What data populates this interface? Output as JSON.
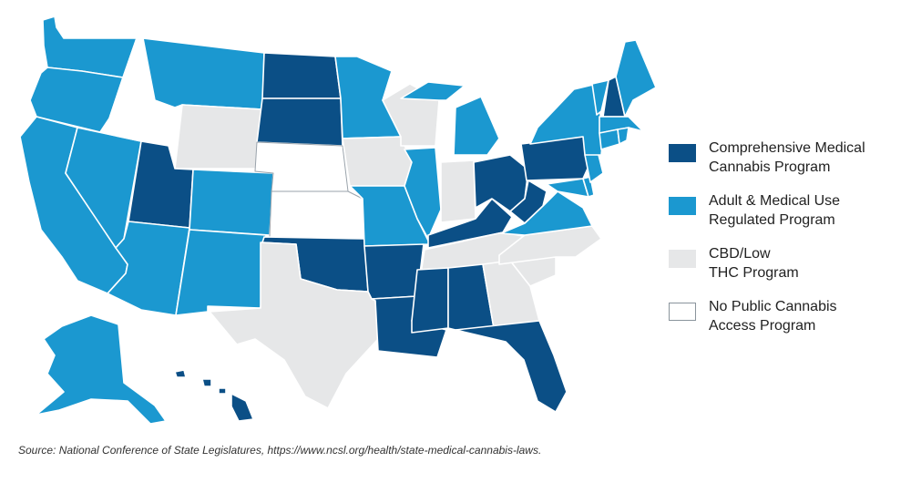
{
  "colors": {
    "comprehensive": "#0b4f86",
    "adult": "#1b98d0",
    "cbd": "#e6e7e8",
    "none": "#ffffff"
  },
  "legend": [
    {
      "category": "comprehensive",
      "line1": "Comprehensive Medical",
      "line2": "Cannabis Program"
    },
    {
      "category": "adult",
      "line1": "Adult & Medical Use",
      "line2": "Regulated Program"
    },
    {
      "category": "cbd",
      "line1": "CBD/Low",
      "line2": "THC Program"
    },
    {
      "category": "none",
      "line1": "No Public Cannabis",
      "line2": "Access Program"
    }
  ],
  "states": {
    "WA": "adult",
    "OR": "adult",
    "CA": "adult",
    "NV": "adult",
    "ID": "none",
    "MT": "adult",
    "WY": "cbd",
    "UT": "comprehensive",
    "AZ": "adult",
    "CO": "adult",
    "NM": "adult",
    "ND": "comprehensive",
    "SD": "comprehensive",
    "NE": "none",
    "KS": "none",
    "OK": "comprehensive",
    "TX": "cbd",
    "MN": "adult",
    "IA": "cbd",
    "MO": "adult",
    "AR": "comprehensive",
    "LA": "comprehensive",
    "WI": "cbd",
    "IL": "adult",
    "MS": "comprehensive",
    "MI": "adult",
    "IN": "cbd",
    "KY": "comprehensive",
    "TN": "cbd",
    "AL": "comprehensive",
    "OH": "comprehensive",
    "WV": "comprehensive",
    "GA": "cbd",
    "FL": "comprehensive",
    "SC": "cbd",
    "NC": "cbd",
    "VA": "adult",
    "PA": "comprehensive",
    "NY": "adult",
    "VT": "adult",
    "NH": "comprehensive",
    "ME": "adult",
    "MA": "adult",
    "CT": "adult",
    "RI": "adult",
    "NJ": "adult",
    "DE": "adult",
    "MD": "adult",
    "AK": "adult",
    "HI": "comprehensive"
  },
  "source": "Source: National Conference of State Legislatures, https://www.ncsl.org/health/state-medical-cannabis-laws."
}
